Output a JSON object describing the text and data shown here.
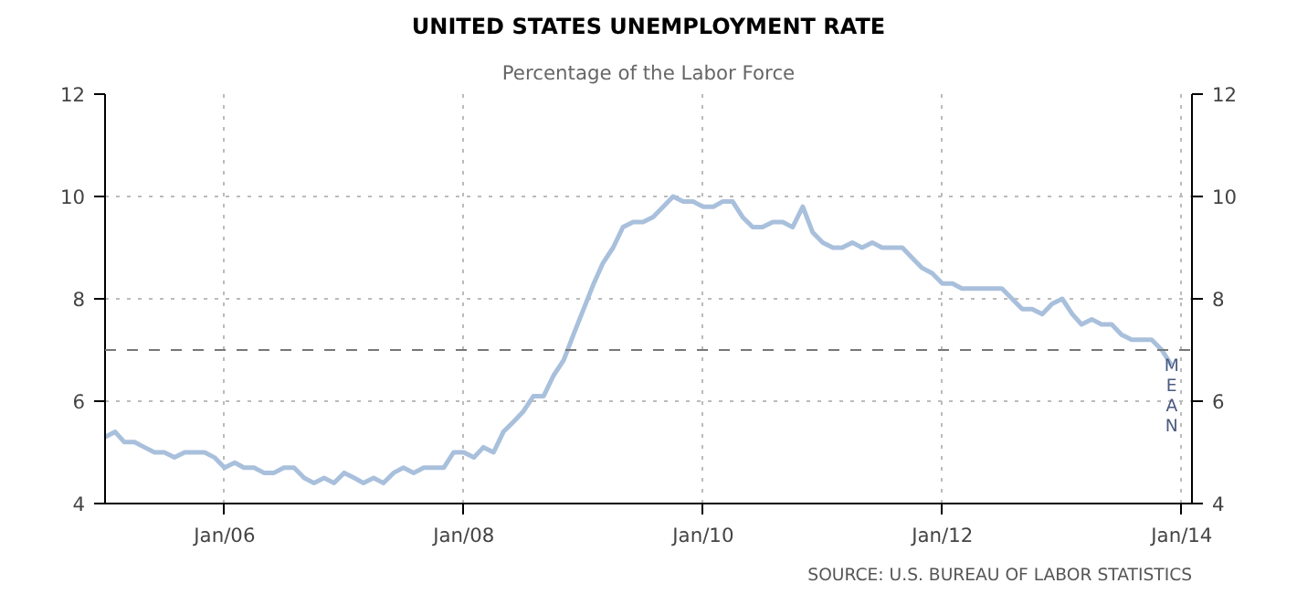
{
  "chart_data": {
    "type": "line",
    "title": "UNITED STATES UNEMPLOYMENT RATE",
    "subtitle": "Percentage of the Labor Force",
    "annotations": [
      "SOURCE: U.S. BUREAU OF LABOR STATISTICS"
    ],
    "x": [
      "2005-01",
      "2005-02",
      "2005-03",
      "2005-04",
      "2005-05",
      "2005-06",
      "2005-07",
      "2005-08",
      "2005-09",
      "2005-10",
      "2005-11",
      "2005-12",
      "2006-01",
      "2006-02",
      "2006-03",
      "2006-04",
      "2006-05",
      "2006-06",
      "2006-07",
      "2006-08",
      "2006-09",
      "2006-10",
      "2006-11",
      "2006-12",
      "2007-01",
      "2007-02",
      "2007-03",
      "2007-04",
      "2007-05",
      "2007-06",
      "2007-07",
      "2007-08",
      "2007-09",
      "2007-10",
      "2007-11",
      "2007-12",
      "2008-01",
      "2008-02",
      "2008-03",
      "2008-04",
      "2008-05",
      "2008-06",
      "2008-07",
      "2008-08",
      "2008-09",
      "2008-10",
      "2008-11",
      "2008-12",
      "2009-01",
      "2009-02",
      "2009-03",
      "2009-04",
      "2009-05",
      "2009-06",
      "2009-07",
      "2009-08",
      "2009-09",
      "2009-10",
      "2009-11",
      "2009-12",
      "2010-01",
      "2010-02",
      "2010-03",
      "2010-04",
      "2010-05",
      "2010-06",
      "2010-07",
      "2010-08",
      "2010-09",
      "2010-10",
      "2010-11",
      "2010-12",
      "2011-01",
      "2011-02",
      "2011-03",
      "2011-04",
      "2011-05",
      "2011-06",
      "2011-07",
      "2011-08",
      "2011-09",
      "2011-10",
      "2011-11",
      "2011-12",
      "2012-01",
      "2012-02",
      "2012-03",
      "2012-04",
      "2012-05",
      "2012-06",
      "2012-07",
      "2012-08",
      "2012-09",
      "2012-10",
      "2012-11",
      "2012-12",
      "2013-01",
      "2013-02",
      "2013-03",
      "2013-04",
      "2013-05",
      "2013-06",
      "2013-07",
      "2013-08",
      "2013-09",
      "2013-10",
      "2013-11",
      "2013-12"
    ],
    "series": [
      {
        "color": "#a9c0dc",
        "values": [
          5.3,
          5.4,
          5.2,
          5.2,
          5.1,
          5.0,
          5.0,
          4.9,
          5.0,
          5.0,
          5.0,
          4.9,
          4.7,
          4.8,
          4.7,
          4.7,
          4.6,
          4.6,
          4.7,
          4.7,
          4.5,
          4.4,
          4.5,
          4.4,
          4.6,
          4.5,
          4.4,
          4.5,
          4.4,
          4.6,
          4.7,
          4.6,
          4.7,
          4.7,
          4.7,
          5.0,
          5.0,
          4.9,
          5.1,
          5.0,
          5.4,
          5.6,
          5.8,
          6.1,
          6.1,
          6.5,
          6.8,
          7.3,
          7.8,
          8.3,
          8.7,
          9.0,
          9.4,
          9.5,
          9.5,
          9.6,
          9.8,
          10.0,
          9.9,
          9.9,
          9.8,
          9.8,
          9.9,
          9.9,
          9.6,
          9.4,
          9.4,
          9.5,
          9.5,
          9.4,
          9.8,
          9.3,
          9.1,
          9.0,
          9.0,
          9.1,
          9.0,
          9.1,
          9.0,
          9.0,
          9.0,
          8.8,
          8.6,
          8.5,
          8.3,
          8.3,
          8.2,
          8.2,
          8.2,
          8.2,
          8.2,
          8.0,
          7.8,
          7.8,
          7.7,
          7.9,
          8.0,
          7.7,
          7.5,
          7.6,
          7.5,
          7.5,
          7.3,
          7.2,
          7.2,
          7.2,
          7.0,
          6.7
        ]
      }
    ],
    "xlim": [
      "2005-01",
      "2014-02"
    ],
    "xticks": [
      {
        "value": "2006-01",
        "label": "Jan/06"
      },
      {
        "value": "2008-01",
        "label": "Jan/08"
      },
      {
        "value": "2010-01",
        "label": "Jan/10"
      },
      {
        "value": "2012-01",
        "label": "Jan/12"
      },
      {
        "value": "2014-01",
        "label": "Jan/14"
      }
    ],
    "ylim": [
      4,
      12
    ],
    "yticks": [
      4,
      6,
      8,
      10,
      12
    ],
    "y2lim": [
      4,
      12
    ],
    "y2ticks": [
      4,
      6,
      8,
      10,
      12
    ],
    "ref_lines": [
      {
        "axis": "y",
        "value": 7.0,
        "label": "MEAN",
        "color": "#777777",
        "line_style": "dashed"
      }
    ],
    "grid": true,
    "marker": "none",
    "line_style": "solid"
  }
}
